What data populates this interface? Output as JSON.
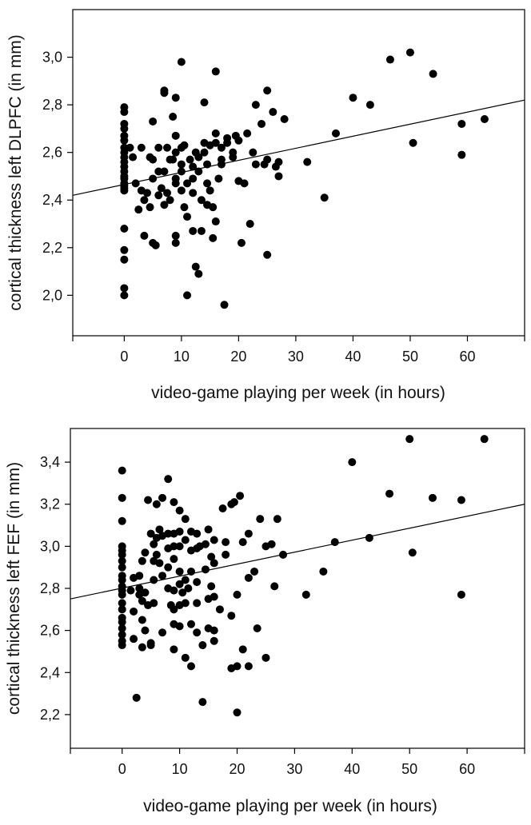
{
  "chart_data": [
    {
      "type": "scatter",
      "title": "",
      "xlabel": "video-game playing per week (in hours)",
      "ylabel": "cortical thickness left DLPFC (in mm)",
      "xlim": [
        -9,
        70
      ],
      "ylim": [
        1.83,
        3.2
      ],
      "xticks": [
        0,
        10,
        20,
        30,
        40,
        50,
        60
      ],
      "xtick_labels": [
        "0",
        "10",
        "20",
        "30",
        "40",
        "50",
        "60"
      ],
      "yticks": [
        2.0,
        2.2,
        2.4,
        2.6,
        2.8,
        3.0
      ],
      "ytick_labels": [
        "2,0",
        "2,2",
        "2,4",
        "2,6",
        "2,8",
        "3,0"
      ],
      "grid": false,
      "regression_line": {
        "x": [
          -9,
          70
        ],
        "y": [
          2.42,
          2.82
        ]
      },
      "points": [
        [
          0,
          2.79
        ],
        [
          0,
          2.77
        ],
        [
          0,
          2.72
        ],
        [
          0,
          2.7
        ],
        [
          0,
          2.67
        ],
        [
          0,
          2.65
        ],
        [
          0,
          2.62
        ],
        [
          0,
          2.6
        ],
        [
          0,
          2.58
        ],
        [
          0,
          2.56
        ],
        [
          0,
          2.54
        ],
        [
          0,
          2.52
        ],
        [
          0,
          2.5
        ],
        [
          0,
          2.49
        ],
        [
          0,
          2.47
        ],
        [
          0,
          2.46
        ],
        [
          0,
          2.45
        ],
        [
          0,
          2.44
        ],
        [
          0,
          2.28
        ],
        [
          0,
          2.19
        ],
        [
          0,
          2.15
        ],
        [
          0,
          2.03
        ],
        [
          0,
          2.0
        ],
        [
          1,
          2.62
        ],
        [
          1.5,
          2.58
        ],
        [
          2,
          2.47
        ],
        [
          2.5,
          2.36
        ],
        [
          3,
          2.62
        ],
        [
          3,
          2.44
        ],
        [
          3.5,
          2.4
        ],
        [
          3.5,
          2.25
        ],
        [
          4,
          2.43
        ],
        [
          4.5,
          2.58
        ],
        [
          4.5,
          2.37
        ],
        [
          5,
          2.73
        ],
        [
          5,
          2.57
        ],
        [
          5,
          2.49
        ],
        [
          5,
          2.22
        ],
        [
          5.5,
          2.21
        ],
        [
          6,
          2.62
        ],
        [
          6,
          2.52
        ],
        [
          6,
          2.42
        ],
        [
          6.5,
          2.45
        ],
        [
          7,
          2.86
        ],
        [
          7,
          2.85
        ],
        [
          7,
          2.52
        ],
        [
          7,
          2.38
        ],
        [
          7.5,
          2.62
        ],
        [
          7.5,
          2.43
        ],
        [
          8,
          2.57
        ],
        [
          8,
          2.4
        ],
        [
          8.5,
          2.75
        ],
        [
          8.5,
          2.57
        ],
        [
          9,
          2.83
        ],
        [
          9,
          2.67
        ],
        [
          9,
          2.6
        ],
        [
          9,
          2.49
        ],
        [
          9,
          2.47
        ],
        [
          9,
          2.25
        ],
        [
          9,
          2.22
        ],
        [
          10,
          2.98
        ],
        [
          10,
          2.62
        ],
        [
          10,
          2.55
        ],
        [
          10,
          2.52
        ],
        [
          10,
          2.44
        ],
        [
          10.5,
          2.63
        ],
        [
          10.5,
          2.37
        ],
        [
          11,
          2.47
        ],
        [
          11,
          2.33
        ],
        [
          11,
          2.0
        ],
        [
          11.5,
          2.57
        ],
        [
          12,
          2.54
        ],
        [
          12,
          2.49
        ],
        [
          12,
          2.43
        ],
        [
          12,
          2.27
        ],
        [
          12.5,
          2.12
        ],
        [
          12.5,
          2.6
        ],
        [
          13,
          2.58
        ],
        [
          13,
          2.52
        ],
        [
          13,
          2.09
        ],
        [
          13.5,
          2.4
        ],
        [
          13.5,
          2.27
        ],
        [
          14,
          2.81
        ],
        [
          14,
          2.64
        ],
        [
          14,
          2.6
        ],
        [
          14.5,
          2.55
        ],
        [
          14.5,
          2.47
        ],
        [
          14.5,
          2.38
        ],
        [
          15,
          2.63
        ],
        [
          15,
          2.44
        ],
        [
          15.5,
          2.24
        ],
        [
          15.5,
          2.37
        ],
        [
          16,
          2.94
        ],
        [
          16,
          2.68
        ],
        [
          16,
          2.64
        ],
        [
          16,
          2.31
        ],
        [
          16.5,
          2.49
        ],
        [
          17,
          2.62
        ],
        [
          17,
          2.57
        ],
        [
          17,
          2.55
        ],
        [
          17.5,
          1.96
        ],
        [
          18,
          2.66
        ],
        [
          18,
          2.64
        ],
        [
          19,
          2.6
        ],
        [
          19,
          2.58
        ],
        [
          19.5,
          2.67
        ],
        [
          20,
          2.65
        ],
        [
          20,
          2.48
        ],
        [
          20.5,
          2.22
        ],
        [
          21,
          2.47
        ],
        [
          21.5,
          2.68
        ],
        [
          22,
          2.3
        ],
        [
          22.5,
          2.6
        ],
        [
          23,
          2.8
        ],
        [
          23,
          2.55
        ],
        [
          24,
          2.72
        ],
        [
          24.5,
          2.55
        ],
        [
          25,
          2.86
        ],
        [
          25,
          2.57
        ],
        [
          25,
          2.17
        ],
        [
          26,
          2.77
        ],
        [
          26.5,
          2.54
        ],
        [
          27,
          2.56
        ],
        [
          27,
          2.5
        ],
        [
          28,
          2.74
        ],
        [
          32,
          2.56
        ],
        [
          35,
          2.41
        ],
        [
          37,
          2.68
        ],
        [
          40,
          2.83
        ],
        [
          43,
          2.8
        ],
        [
          46.5,
          2.99
        ],
        [
          50,
          3.02
        ],
        [
          50.5,
          2.64
        ],
        [
          54,
          2.93
        ],
        [
          59,
          2.72
        ],
        [
          59,
          2.59
        ],
        [
          63,
          2.74
        ]
      ]
    },
    {
      "type": "scatter",
      "title": "",
      "xlabel": "video-game playing per week (in hours)",
      "ylabel": "cortical thickness left FEF (in mm)",
      "xlim": [
        -9,
        70
      ],
      "ylim": [
        2.04,
        3.56
      ],
      "xticks": [
        0,
        10,
        20,
        30,
        40,
        50,
        60
      ],
      "xtick_labels": [
        "0",
        "10",
        "20",
        "30",
        "40",
        "50",
        "60"
      ],
      "yticks": [
        2.2,
        2.4,
        2.6,
        2.8,
        3.0,
        3.2,
        3.4
      ],
      "ytick_labels": [
        "2,2",
        "2,4",
        "2,6",
        "2,8",
        "3,0",
        "3,2",
        "3,4"
      ],
      "grid": false,
      "regression_line": {
        "x": [
          -9,
          70
        ],
        "y": [
          2.75,
          3.2
        ]
      },
      "points": [
        [
          0,
          3.36
        ],
        [
          0,
          3.23
        ],
        [
          0,
          3.12
        ],
        [
          0,
          3.0
        ],
        [
          0,
          2.98
        ],
        [
          0,
          2.96
        ],
        [
          0,
          2.93
        ],
        [
          0,
          2.9
        ],
        [
          0,
          2.86
        ],
        [
          0,
          2.84
        ],
        [
          0,
          2.81
        ],
        [
          0,
          2.79
        ],
        [
          0,
          2.77
        ],
        [
          0,
          2.73
        ],
        [
          0,
          2.7
        ],
        [
          0,
          2.66
        ],
        [
          0,
          2.64
        ],
        [
          0,
          2.61
        ],
        [
          0,
          2.58
        ],
        [
          0,
          2.55
        ],
        [
          0,
          2.53
        ],
        [
          1.5,
          2.79
        ],
        [
          2,
          2.85
        ],
        [
          2,
          2.69
        ],
        [
          2,
          2.56
        ],
        [
          2.5,
          2.28
        ],
        [
          3,
          2.86
        ],
        [
          3,
          2.8
        ],
        [
          3,
          2.77
        ],
        [
          3.5,
          2.93
        ],
        [
          3.5,
          2.74
        ],
        [
          3.5,
          2.65
        ],
        [
          3.5,
          2.52
        ],
        [
          4,
          2.97
        ],
        [
          4,
          2.78
        ],
        [
          4,
          2.6
        ],
        [
          4.5,
          3.22
        ],
        [
          4.5,
          2.72
        ],
        [
          5,
          2.54
        ],
        [
          5,
          2.53
        ],
        [
          5,
          3.06
        ],
        [
          5.5,
          3.01
        ],
        [
          5.5,
          2.93
        ],
        [
          5.5,
          2.84
        ],
        [
          5.5,
          2.73
        ],
        [
          6,
          3.2
        ],
        [
          6,
          3.04
        ],
        [
          6,
          2.96
        ],
        [
          6.5,
          3.08
        ],
        [
          6.5,
          2.92
        ],
        [
          7,
          3.23
        ],
        [
          7,
          3.05
        ],
        [
          7,
          2.86
        ],
        [
          7,
          2.59
        ],
        [
          8,
          3.32
        ],
        [
          8,
          3.06
        ],
        [
          8,
          2.99
        ],
        [
          8,
          2.9
        ],
        [
          8,
          2.8
        ],
        [
          8.5,
          2.72
        ],
        [
          9,
          3.21
        ],
        [
          9,
          3.06
        ],
        [
          9,
          3.0
        ],
        [
          9,
          2.94
        ],
        [
          9,
          2.79
        ],
        [
          9,
          2.7
        ],
        [
          9,
          2.63
        ],
        [
          9,
          2.51
        ],
        [
          10,
          3.17
        ],
        [
          10,
          3.07
        ],
        [
          10,
          3.0
        ],
        [
          10,
          2.88
        ],
        [
          10,
          2.82
        ],
        [
          10,
          2.72
        ],
        [
          10,
          2.62
        ],
        [
          10.5,
          2.78
        ],
        [
          11,
          3.13
        ],
        [
          11,
          3.03
        ],
        [
          11,
          2.84
        ],
        [
          11,
          2.73
        ],
        [
          11,
          2.47
        ],
        [
          11.5,
          2.8
        ],
        [
          12,
          3.07
        ],
        [
          12,
          2.98
        ],
        [
          12,
          2.88
        ],
        [
          12,
          2.63
        ],
        [
          12,
          2.43
        ],
        [
          13,
          3.06
        ],
        [
          13,
          2.99
        ],
        [
          13,
          2.83
        ],
        [
          13,
          2.73
        ],
        [
          13,
          2.59
        ],
        [
          13.5,
          3.0
        ],
        [
          14,
          2.26
        ],
        [
          14,
          2.53
        ],
        [
          14.5,
          3.01
        ],
        [
          14.5,
          2.89
        ],
        [
          15,
          3.08
        ],
        [
          15,
          2.75
        ],
        [
          15,
          2.61
        ],
        [
          15.5,
          2.95
        ],
        [
          15.5,
          2.81
        ],
        [
          16,
          3.03
        ],
        [
          16,
          2.92
        ],
        [
          16,
          2.76
        ],
        [
          16,
          2.6
        ],
        [
          16,
          2.55
        ],
        [
          17,
          2.7
        ],
        [
          17.5,
          3.18
        ],
        [
          18,
          3.02
        ],
        [
          18,
          2.96
        ],
        [
          19,
          3.2
        ],
        [
          19,
          2.67
        ],
        [
          19,
          2.42
        ],
        [
          19.5,
          3.21
        ],
        [
          20,
          2.77
        ],
        [
          20,
          2.43
        ],
        [
          20,
          2.21
        ],
        [
          20.5,
          3.24
        ],
        [
          21,
          3.02
        ],
        [
          21,
          2.51
        ],
        [
          22,
          3.06
        ],
        [
          22,
          2.85
        ],
        [
          22,
          2.43
        ],
        [
          23,
          2.88
        ],
        [
          23.5,
          2.61
        ],
        [
          24,
          3.13
        ],
        [
          25,
          3.0
        ],
        [
          25,
          2.47
        ],
        [
          26,
          3.01
        ],
        [
          26.5,
          2.81
        ],
        [
          27,
          3.13
        ],
        [
          28,
          2.96
        ],
        [
          32,
          2.77
        ],
        [
          35,
          2.88
        ],
        [
          37,
          3.02
        ],
        [
          40,
          3.4
        ],
        [
          43,
          3.04
        ],
        [
          46.5,
          3.25
        ],
        [
          50,
          3.51
        ],
        [
          50.5,
          2.97
        ],
        [
          54,
          3.23
        ],
        [
          59,
          3.22
        ],
        [
          59,
          2.77
        ],
        [
          63,
          3.51
        ]
      ]
    }
  ]
}
